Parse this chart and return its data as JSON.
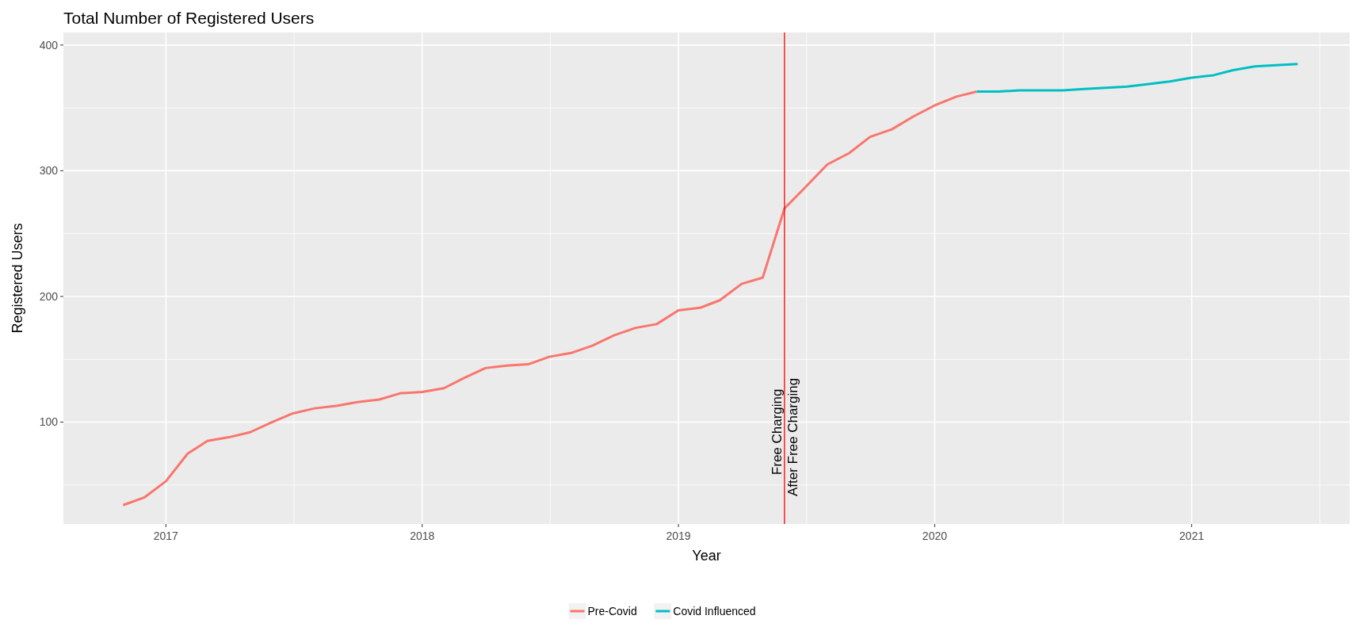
{
  "chart_data": {
    "type": "line",
    "title": "Total Number of Registered Users",
    "xlabel": "Year",
    "ylabel": "Registered Users",
    "x": [
      "2016-11",
      "2016-12",
      "2017-01",
      "2017-02",
      "2017-03",
      "2017-04",
      "2017-05",
      "2017-06",
      "2017-07",
      "2017-08",
      "2017-09",
      "2017-10",
      "2017-11",
      "2017-12",
      "2018-01",
      "2018-02",
      "2018-03",
      "2018-04",
      "2018-05",
      "2018-06",
      "2018-07",
      "2018-08",
      "2018-09",
      "2018-10",
      "2018-11",
      "2018-12",
      "2019-01",
      "2019-02",
      "2019-03",
      "2019-04",
      "2019-05",
      "2019-06",
      "2019-07",
      "2019-08",
      "2019-09",
      "2019-10",
      "2019-11",
      "2019-12",
      "2020-01",
      "2020-02",
      "2020-03"
    ],
    "series": [
      {
        "name": "Pre-Covid",
        "color": "#f8766d",
        "values": [
          34,
          40,
          53,
          75,
          85,
          88,
          92,
          100,
          107,
          111,
          113,
          116,
          118,
          123,
          124,
          127,
          135,
          143,
          145,
          146,
          152,
          155,
          161,
          169,
          175,
          178,
          189,
          191,
          197,
          210,
          215,
          270,
          287,
          305,
          314,
          327,
          333,
          343,
          352,
          359,
          363
        ]
      },
      {
        "name": "Covid Influenced",
        "color": "#00bfc4",
        "x": [
          "2020-03",
          "2020-04",
          "2020-05",
          "2020-06",
          "2020-07",
          "2020-08",
          "2020-09",
          "2020-10",
          "2020-11",
          "2020-12",
          "2021-01",
          "2021-02",
          "2021-03",
          "2021-04",
          "2021-05",
          "2021-06"
        ],
        "values": [
          363,
          363,
          364,
          364,
          364,
          365,
          366,
          367,
          369,
          371,
          374,
          376,
          380,
          383,
          384,
          385
        ]
      }
    ],
    "xlim": [
      "2016-08-08",
      "2021-08-14"
    ],
    "xticks": [
      {
        "value": "2017-01-01",
        "label": "2017"
      },
      {
        "value": "2018-01-01",
        "label": "2018"
      },
      {
        "value": "2019-01-01",
        "label": "2019"
      },
      {
        "value": "2020-01-01",
        "label": "2020"
      },
      {
        "value": "2021-01-01",
        "label": "2021"
      }
    ],
    "ylim": [
      19,
      410
    ],
    "yticks": [
      100,
      200,
      300,
      400
    ],
    "ref_lines": [
      {
        "axis": "x",
        "value": "2019-06",
        "color": "#ff0000"
      }
    ],
    "annotations": [
      {
        "text": "Free Charging",
        "x": "2019-06",
        "y": 58
      },
      {
        "text": "After Free Charging",
        "x": "2019-06",
        "y": 41
      }
    ],
    "grid": true,
    "legend": "bottom",
    "line_style": "solid"
  }
}
